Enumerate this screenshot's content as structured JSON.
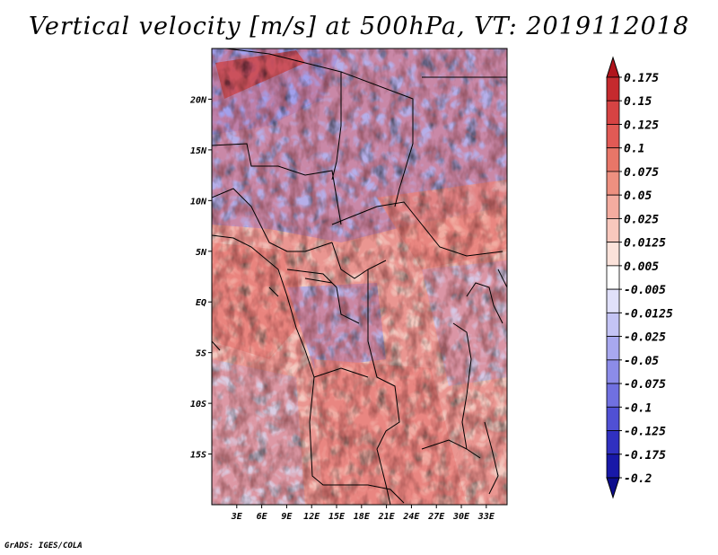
{
  "title": "Vertical velocity [m/s] at 500hPa, VT: 2019112018",
  "credit": "GrADS: IGES/COLA",
  "map": {
    "lon_range": [
      0,
      35.5
    ],
    "lat_range": [
      -20,
      25
    ],
    "lon_ticks": [
      {
        "value": 3,
        "label": "3E"
      },
      {
        "value": 6,
        "label": "6E"
      },
      {
        "value": 9,
        "label": "9E"
      },
      {
        "value": 12,
        "label": "12E"
      },
      {
        "value": 15,
        "label": "15E"
      },
      {
        "value": 18,
        "label": "18E"
      },
      {
        "value": 21,
        "label": "21E"
      },
      {
        "value": 24,
        "label": "24E"
      },
      {
        "value": 27,
        "label": "27E"
      },
      {
        "value": 30,
        "label": "30E"
      },
      {
        "value": 33,
        "label": "33E"
      }
    ],
    "lat_ticks": [
      {
        "value": 20,
        "label": "20N"
      },
      {
        "value": 15,
        "label": "15N"
      },
      {
        "value": 10,
        "label": "10N"
      },
      {
        "value": 5,
        "label": "5N"
      },
      {
        "value": 0,
        "label": "EQ"
      },
      {
        "value": -5,
        "label": "5S"
      },
      {
        "value": -10,
        "label": "10S"
      },
      {
        "value": -15,
        "label": "15S"
      }
    ]
  },
  "colorbar": {
    "labels": [
      "0.175",
      "0.15",
      "0.125",
      "0.1",
      "0.075",
      "0.05",
      "0.025",
      "0.0125",
      "0.005",
      "-0.005",
      "-0.0125",
      "-0.025",
      "-0.05",
      "-0.075",
      "-0.1",
      "-0.125",
      "-0.175",
      "-0.2"
    ],
    "colors": [
      "#b0141c",
      "#c52a2e",
      "#d64343",
      "#e15a55",
      "#e87668",
      "#ee9080",
      "#f4aca0",
      "#f8c8bd",
      "#fbe2da",
      "#ffffff",
      "#e0e0fa",
      "#c4c4f5",
      "#a8a8ef",
      "#8c8ce9",
      "#7070e0",
      "#5050d4",
      "#3030c0",
      "#1818a8",
      "#0c0c8c"
    ]
  }
}
